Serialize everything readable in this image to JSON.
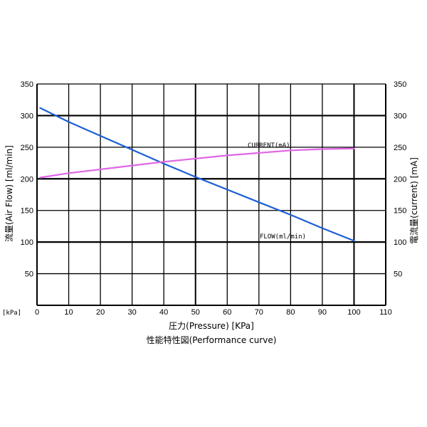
{
  "chart_data": {
    "type": "line",
    "xlabel": "圧力(Pressure) [KPa]",
    "caption": "性能特性図(Performance curve)",
    "x_unit_label": "[kPa]",
    "ylabel_left": "流量(Air Flow) [ml/min]",
    "ylabel_right": "電流量(current) [mA]",
    "xlim": [
      0,
      110
    ],
    "ylim": [
      0,
      350
    ],
    "x_ticks": [
      "0",
      "10",
      "20",
      "30",
      "40",
      "50",
      "60",
      "70",
      "80",
      "90",
      "100",
      "110"
    ],
    "y_ticks_left": [
      "50",
      "100",
      "150",
      "200",
      "250",
      "300",
      "350"
    ],
    "y_ticks_right": [
      "50",
      "100",
      "150",
      "200",
      "250",
      "300",
      "350"
    ],
    "grid": true,
    "series": [
      {
        "name": "FLOW(ml/min)",
        "color": "#1a5fd6",
        "x": [
          1,
          10,
          20,
          30,
          40,
          50,
          60,
          70,
          80,
          90,
          100
        ],
        "y": [
          312,
          290,
          268,
          246,
          224,
          203,
          183,
          163,
          143,
          122,
          102
        ]
      },
      {
        "name": "CURRENT(mA)",
        "color": "#e066e6",
        "x": [
          1,
          10,
          20,
          30,
          40,
          50,
          60,
          70,
          80,
          90,
          100
        ],
        "y": [
          202,
          209,
          215,
          221,
          227,
          232,
          237,
          241,
          245,
          247,
          248
        ]
      }
    ]
  }
}
